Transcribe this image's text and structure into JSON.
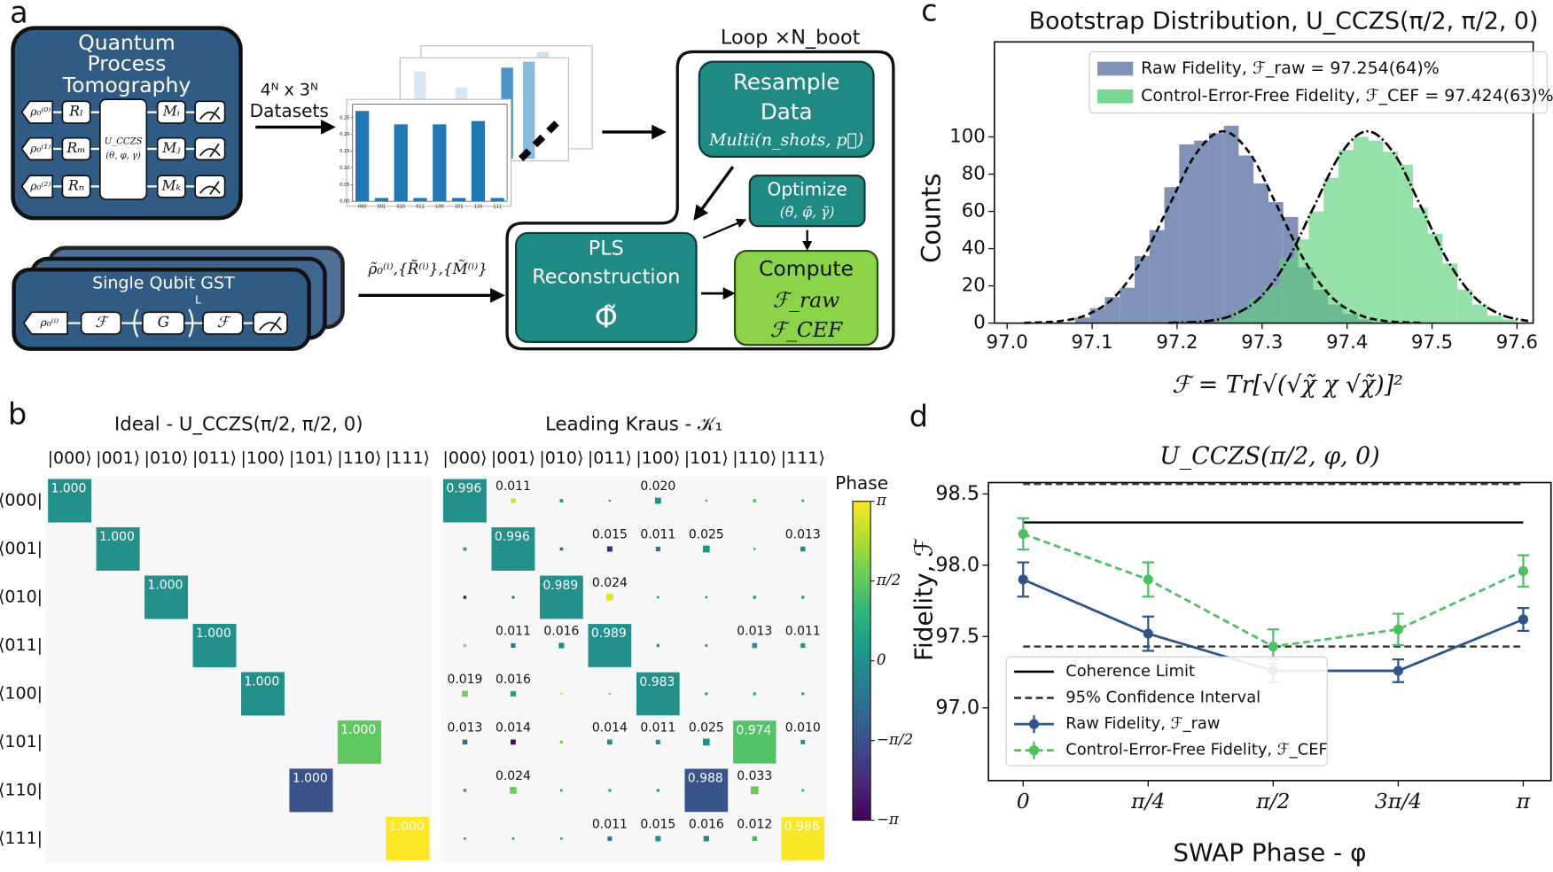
{
  "panel_labels": [
    "a",
    "b",
    "c",
    "d"
  ],
  "diagram": {
    "qpt": {
      "title_lines": [
        "Quantum",
        "Process",
        "Tomography"
      ],
      "inputs": [
        "ρ₀⁽⁰⁾",
        "ρ₀⁽¹⁾",
        "ρ₀⁽²⁾"
      ],
      "preps": [
        "Rₗ",
        "Rₘ",
        "Rₙ"
      ],
      "unitary": [
        "U_CCZS",
        "(θ, φ, γ)"
      ],
      "measurements": [
        "Mᵢ",
        "Mⱼ",
        "Mₖ"
      ]
    },
    "datasets_label": [
      "4ᴺ x 3ᴺ",
      "Datasets"
    ],
    "loop_label": "Loop ×N_boot",
    "resample": [
      "Resample",
      "Data",
      "Multi(n_shots, p⃗)"
    ],
    "optimize": [
      "Optimize",
      "(θ̃, φ̃, γ̃)"
    ],
    "pls": [
      "PLS",
      "Reconstruction",
      "Φ̃"
    ],
    "compute": [
      "Compute",
      "ℱ_raw",
      "ℱ_CEF"
    ],
    "gst": {
      "title": "Single Qubit GST",
      "input": "ρ₀⁽ⁱ⁾",
      "gates": [
        "ℱ",
        "G",
        "ℱ"
      ],
      "power": "L"
    },
    "gst_output": "ρ̃₀⁽ⁱ⁾,{R̃⁽ⁱ⁾},{M̃⁽ⁱ⁾}"
  },
  "chart_data": [
    {
      "type": "bar",
      "categories": [
        "000",
        "001",
        "010",
        "011",
        "100",
        "101",
        "110",
        "111"
      ],
      "values": [
        0.27,
        0.01,
        0.23,
        0.01,
        0.23,
        0.01,
        0.24,
        0.01
      ],
      "color": "#1f77b4",
      "ylim": [
        0,
        0.29
      ],
      "yticks": [
        {
          "value": 0,
          "label": "0.00"
        },
        {
          "value": 0.05,
          "label": "0.05"
        },
        {
          "value": 0.1,
          "label": "0.10"
        },
        {
          "value": 0.15,
          "label": "0.15"
        },
        {
          "value": 0.2,
          "label": "0.20"
        },
        {
          "value": 0.25,
          "label": "0.25"
        }
      ]
    },
    {
      "type": "heatmap",
      "title": "Ideal - U_CCZS(π/2, π/2, 0)",
      "columns": [
        "|000⟩",
        "|001⟩",
        "|010⟩",
        "|011⟩",
        "|100⟩",
        "|101⟩",
        "|110⟩",
        "|111⟩"
      ],
      "rows": [
        "⟨000|",
        "⟨001|",
        "⟨010|",
        "⟨011|",
        "⟨100|",
        "⟨101|",
        "⟨110|",
        "⟨111|"
      ],
      "values": [
        [
          1,
          0,
          0,
          0,
          0,
          0,
          0,
          0
        ],
        [
          0,
          1,
          0,
          0,
          0,
          0,
          0,
          0
        ],
        [
          0,
          0,
          1,
          0,
          0,
          0,
          0,
          0
        ],
        [
          0,
          0,
          0,
          1,
          0,
          0,
          0,
          0
        ],
        [
          0,
          0,
          0,
          0,
          1,
          0,
          0,
          0
        ],
        [
          0,
          0,
          0,
          0,
          0,
          0,
          1,
          0
        ],
        [
          0,
          0,
          0,
          0,
          0,
          1,
          0,
          0
        ],
        [
          0,
          0,
          0,
          0,
          0,
          0,
          0,
          1
        ]
      ],
      "value_labels": [
        [
          "1.000",
          null,
          null,
          null,
          null,
          null,
          null,
          null
        ],
        [
          null,
          "1.000",
          null,
          null,
          null,
          null,
          null,
          null
        ],
        [
          null,
          null,
          "1.000",
          null,
          null,
          null,
          null,
          null
        ],
        [
          null,
          null,
          null,
          "1.000",
          null,
          null,
          null,
          null
        ],
        [
          null,
          null,
          null,
          null,
          "1.000",
          null,
          null,
          null
        ],
        [
          null,
          null,
          null,
          null,
          null,
          null,
          "1.000",
          null
        ],
        [
          null,
          null,
          null,
          null,
          null,
          "1.000",
          null,
          null
        ],
        [
          null,
          null,
          null,
          null,
          null,
          null,
          null,
          "1.000"
        ]
      ],
      "phases": [
        [
          0,
          0,
          0,
          0,
          0,
          0,
          0,
          0
        ],
        [
          0,
          0,
          0,
          0,
          0,
          0,
          0,
          0
        ],
        [
          0,
          0,
          0,
          0,
          0,
          0,
          0,
          0
        ],
        [
          0,
          0,
          0,
          0,
          0,
          0,
          0,
          0
        ],
        [
          0,
          0,
          0,
          0,
          0,
          0,
          0,
          0
        ],
        [
          0,
          0,
          0,
          0,
          0,
          0,
          1.5708,
          0
        ],
        [
          0,
          0,
          0,
          0,
          0,
          -1.5708,
          0,
          0
        ],
        [
          0,
          0,
          0,
          0,
          0,
          0,
          0,
          3.1416
        ]
      ],
      "phase_lim": [
        -3.1416,
        3.1416
      ],
      "colormap": "viridis"
    },
    {
      "type": "heatmap",
      "title": "Leading Kraus - 𝒦₁",
      "columns": [
        "|000⟩",
        "|001⟩",
        "|010⟩",
        "|011⟩",
        "|100⟩",
        "|101⟩",
        "|110⟩",
        "|111⟩"
      ],
      "values": [
        [
          0.996,
          0.011,
          0.006,
          0.002,
          0.02,
          0.002,
          0.006,
          0.003
        ],
        [
          0.006,
          0.996,
          0.005,
          0.015,
          0.011,
          0.025,
          0.002,
          0.013
        ],
        [
          0.005,
          0.004,
          0.989,
          0.024,
          0.003,
          0.003,
          0.005,
          0.004
        ],
        [
          0.005,
          0.011,
          0.016,
          0.989,
          0.005,
          0.003,
          0.013,
          0.011
        ],
        [
          0.019,
          0.016,
          0.002,
          0.001,
          0.983,
          0.004,
          0.005,
          0.004
        ],
        [
          0.013,
          0.014,
          0.005,
          0.014,
          0.011,
          0.025,
          0.974,
          0.01
        ],
        [
          0.005,
          0.024,
          0.003,
          0.004,
          0.004,
          0.988,
          0.033,
          0.003
        ],
        [
          0.003,
          0.003,
          0.003,
          0.011,
          0.015,
          0.016,
          0.012,
          0.986
        ]
      ],
      "value_labels": [
        [
          "0.996",
          "0.011",
          null,
          null,
          "0.020",
          null,
          null,
          null
        ],
        [
          null,
          "0.996",
          null,
          "0.015",
          "0.011",
          "0.025",
          null,
          "0.013"
        ],
        [
          null,
          null,
          "0.989",
          "0.024",
          null,
          null,
          null,
          null
        ],
        [
          null,
          "0.011",
          "0.016",
          "0.989",
          null,
          null,
          "0.013",
          "0.011"
        ],
        [
          "0.019",
          "0.016",
          null,
          null,
          "0.983",
          null,
          null,
          null
        ],
        [
          "0.013",
          "0.014",
          null,
          "0.014",
          "0.011",
          "0.025",
          "0.974",
          "0.010"
        ],
        [
          null,
          "0.024",
          null,
          null,
          null,
          "0.988",
          "0.033",
          null
        ],
        [
          null,
          null,
          null,
          "0.011",
          "0.015",
          "0.016",
          "0.012",
          "0.986"
        ]
      ],
      "phases": [
        [
          0,
          2.6,
          0,
          0.3,
          0,
          0.5,
          1.5,
          0.2
        ],
        [
          0.2,
          0,
          -1.2,
          -2.5,
          -0.8,
          0,
          0,
          0
        ],
        [
          -2.8,
          -0.8,
          0,
          2.9,
          0.5,
          0.5,
          0.3,
          -0.3
        ],
        [
          2.2,
          -0.5,
          -0.2,
          0,
          0.2,
          -0.3,
          0,
          0
        ],
        [
          1.8,
          0.5,
          2.8,
          -0.5,
          0,
          0.3,
          1,
          0.2
        ],
        [
          -0.8,
          -2.9,
          1.8,
          0,
          0,
          0,
          1.4,
          0
        ],
        [
          0.5,
          1.7,
          0.5,
          0.5,
          0,
          -1.5,
          1.7,
          0.5
        ],
        [
          0.5,
          0.5,
          0.5,
          -0.5,
          0,
          -0.3,
          1.2,
          3.1
        ]
      ],
      "phase_lim": [
        -3.1416,
        3.1416
      ],
      "colormap": "viridis",
      "colorbar": {
        "title": "Phase",
        "ticks": [
          {
            "value": 3.1416,
            "label": "π"
          },
          {
            "value": 1.5708,
            "label": "π/2"
          },
          {
            "value": 0,
            "label": "0"
          },
          {
            "value": -1.5708,
            "label": "−π/2"
          },
          {
            "value": -3.1416,
            "label": "−π"
          }
        ]
      }
    },
    {
      "type": "histogram",
      "title": "Bootstrap Distribution, U_CCZS(π/2, π/2, 0)",
      "x_label": "ℱ = Tr[√(√χ̃ χ √χ̃)]²",
      "y_label": "Counts",
      "xlim": [
        96.985,
        97.619
      ],
      "ylim": [
        0,
        151
      ],
      "xticks": [
        {
          "value": 97,
          "label": "97.0"
        },
        97.1,
        97.2,
        97.3,
        97.4,
        97.5,
        97.6
      ],
      "yticks": [
        0,
        20,
        40,
        60,
        80,
        100
      ],
      "legend": "upper right",
      "series": [
        {
          "name": "Raw Fidelity, ℱ_raw = 97.254(64)%",
          "color": "#6a7fab",
          "bins": [
            97.08,
            97.0975,
            97.115,
            97.1325,
            97.15,
            97.1675,
            97.185,
            97.2025,
            97.22,
            97.2375,
            97.255,
            97.2725,
            97.29,
            97.3075,
            97.325,
            97.3425,
            97.36,
            97.3775,
            97.395,
            97.4125,
            97.43
          ],
          "values": [
            3,
            8,
            14,
            19,
            36,
            50,
            73,
            96,
            98,
            102,
            106,
            90,
            75,
            65,
            57,
            30,
            18,
            10,
            5,
            2
          ],
          "fit": {
            "style": "dashed",
            "x": [
              97.02,
              97.062,
              97.094,
              97.126,
              97.158,
              97.19,
              97.222,
              97.254,
              97.286,
              97.318,
              97.35,
              97.382,
              97.414,
              97.446,
              97.49
            ],
            "y": [
              0.1,
              1.1,
              4.5,
              13.9,
              33.5,
              62.5,
              90.9,
              103,
              90.9,
              62.5,
              33.5,
              13.9,
              4.5,
              1.1,
              0.1
            ]
          }
        },
        {
          "name": "Control-Error-Free Fidelity, ℱ_CEF = 97.424(63)%",
          "color": "#5ed17d",
          "bins": [
            97.25,
            97.2675,
            97.285,
            97.3025,
            97.32,
            97.3375,
            97.355,
            97.3725,
            97.39,
            97.4075,
            97.425,
            97.4425,
            97.46,
            97.4775,
            97.495,
            97.5125,
            97.53,
            97.5475,
            97.565,
            97.5825,
            97.6
          ],
          "values": [
            2,
            7,
            13,
            20,
            35,
            45,
            60,
            78,
            93,
            100,
            98,
            92,
            85,
            62,
            48,
            32,
            18,
            10,
            4,
            2
          ],
          "fit": {
            "style": "dashdot",
            "x": [
              97.19,
              97.235,
              97.2665,
              97.298,
              97.3295,
              97.361,
              97.3925,
              97.424,
              97.4555,
              97.487,
              97.5185,
              97.55,
              97.5815,
              97.613
            ],
            "y": [
              0.1,
              1.1,
              4.5,
              13.9,
              33.5,
              62.5,
              90.9,
              103,
              90.9,
              62.5,
              33.5,
              13.9,
              4.5,
              1.1
            ]
          }
        }
      ]
    },
    {
      "type": "line",
      "title": "U_CCZS(π/2, φ, 0)",
      "x_label": "SWAP Phase - φ",
      "y_label": "Fidelity, ℱ",
      "x": [
        0,
        0.7854,
        1.5708,
        2.3562,
        3.1416
      ],
      "xlim": [
        -0.218,
        3.316
      ],
      "ylim": [
        96.49,
        98.58
      ],
      "xticks": [
        0,
        {
          "value": 0.7854,
          "label": "π/4"
        },
        {
          "value": 1.5708,
          "label": "π/2"
        },
        {
          "value": 2.3562,
          "label": "3π/4"
        },
        {
          "value": 3.1416,
          "label": "π"
        }
      ],
      "yticks": [
        {
          "value": 97,
          "label": "97.0"
        },
        97.5,
        {
          "value": 98,
          "label": "98.0"
        },
        98.5
      ],
      "legend": "lower left",
      "reference_lines": [
        {
          "name": "Coherence Limit",
          "style": "solid",
          "color": "#000000",
          "values": [
            98.3
          ]
        },
        {
          "name": "95% Confidence Interval",
          "style": "dashed",
          "color": "#333333",
          "values": [
            98.57,
            97.43
          ]
        }
      ],
      "series": [
        {
          "name": "Raw Fidelity, ℱ_raw",
          "style": "solid",
          "color": "#2e5588",
          "values": [
            97.9,
            97.52,
            97.26,
            97.26,
            97.62
          ],
          "errors": [
            0.12,
            0.12,
            0.08,
            0.08,
            0.08
          ]
        },
        {
          "name": "Control-Error-Free Fidelity, ℱ_CEF",
          "style": "dashed",
          "color": "#4cc162",
          "values": [
            98.22,
            97.9,
            97.43,
            97.55,
            97.96
          ],
          "errors": [
            0.11,
            0.12,
            0.12,
            0.11,
            0.11
          ]
        }
      ]
    }
  ]
}
